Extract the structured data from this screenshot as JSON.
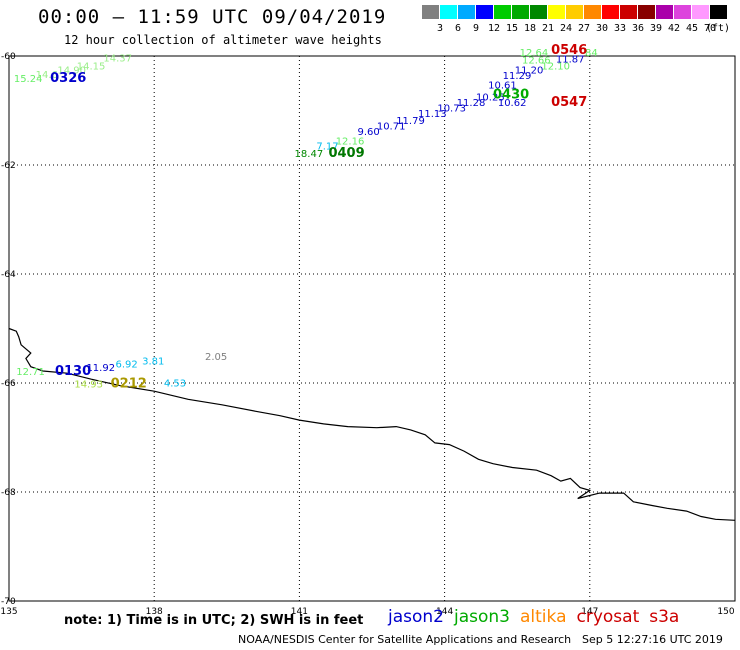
{
  "header": {
    "title": "00:00 — 11:59 UTC 09/04/2019",
    "subtitle": "12 hour collection of altimeter wave heights"
  },
  "color_scale": {
    "unit": "(ft)",
    "bins": [
      {
        "label": "3",
        "color": "#808080"
      },
      {
        "label": "6",
        "color": "#00ffff"
      },
      {
        "label": "9",
        "color": "#00aaff"
      },
      {
        "label": "12",
        "color": "#0000ff"
      },
      {
        "label": "15",
        "color": "#00cc00"
      },
      {
        "label": "18",
        "color": "#00aa00"
      },
      {
        "label": "21",
        "color": "#008800"
      },
      {
        "label": "24",
        "color": "#ffff00"
      },
      {
        "label": "27",
        "color": "#ffcc00"
      },
      {
        "label": "30",
        "color": "#ff8800"
      },
      {
        "label": "33",
        "color": "#ff0000"
      },
      {
        "label": "36",
        "color": "#cc0000"
      },
      {
        "label": "39",
        "color": "#880000"
      },
      {
        "label": "42",
        "color": "#aa00aa"
      },
      {
        "label": "45",
        "color": "#dd44dd"
      },
      {
        "label": "70",
        "color": "#ff99ff"
      },
      {
        "label": "",
        "color": "#000000"
      }
    ]
  },
  "axes": {
    "lon_min": 135,
    "lon_max": 150,
    "lat_top": -60,
    "lat_bottom": -70,
    "lon_ticks": [
      "135",
      "138",
      "141",
      "144",
      "147",
      "150"
    ],
    "lat_ticks": [
      "-60",
      "-62",
      "-64",
      "-66",
      "-68",
      "-70"
    ]
  },
  "coastline": [
    [
      135.0,
      -65.0
    ],
    [
      135.15,
      -65.05
    ],
    [
      135.2,
      -65.15
    ],
    [
      135.25,
      -65.3
    ],
    [
      135.45,
      -65.45
    ],
    [
      135.35,
      -65.55
    ],
    [
      135.45,
      -65.7
    ],
    [
      135.7,
      -65.78
    ],
    [
      136.2,
      -65.82
    ],
    [
      136.7,
      -65.93
    ],
    [
      137.3,
      -66.05
    ],
    [
      138.0,
      -66.15
    ],
    [
      138.7,
      -66.3
    ],
    [
      139.4,
      -66.4
    ],
    [
      140.1,
      -66.52
    ],
    [
      140.6,
      -66.6
    ],
    [
      141.0,
      -66.68
    ],
    [
      141.5,
      -66.75
    ],
    [
      142.0,
      -66.8
    ],
    [
      142.6,
      -66.82
    ],
    [
      143.0,
      -66.8
    ],
    [
      143.3,
      -66.86
    ],
    [
      143.6,
      -66.95
    ],
    [
      143.8,
      -67.1
    ],
    [
      144.1,
      -67.13
    ],
    [
      144.4,
      -67.25
    ],
    [
      144.7,
      -67.4
    ],
    [
      145.0,
      -67.48
    ],
    [
      145.4,
      -67.55
    ],
    [
      145.9,
      -67.6
    ],
    [
      146.2,
      -67.7
    ],
    [
      146.4,
      -67.8
    ],
    [
      146.6,
      -67.75
    ],
    [
      146.8,
      -67.92
    ],
    [
      147.0,
      -67.97
    ],
    [
      146.75,
      -68.12
    ],
    [
      147.2,
      -68.02
    ],
    [
      147.7,
      -68.02
    ],
    [
      147.9,
      -68.18
    ],
    [
      148.3,
      -68.25
    ],
    [
      148.6,
      -68.3
    ],
    [
      149.0,
      -68.35
    ],
    [
      149.3,
      -68.45
    ],
    [
      149.6,
      -68.5
    ],
    [
      150.0,
      -68.52
    ]
  ],
  "observations": [
    {
      "label": "15.24",
      "lon": 135.1,
      "lat": -60.48,
      "color": "#66ee66"
    },
    {
      "label": "14.6",
      "lon": 135.55,
      "lat": -60.4,
      "color": "#99ee88"
    },
    {
      "label": "14.90",
      "lon": 136.0,
      "lat": -60.32,
      "color": "#99ee88"
    },
    {
      "label": "14.15",
      "lon": 136.4,
      "lat": -60.25,
      "color": "#99ee88"
    },
    {
      "label": "14.37",
      "lon": 136.95,
      "lat": -60.1,
      "color": "#99ee88"
    },
    {
      "label": "0326",
      "lon": 135.85,
      "lat": -60.48,
      "color": "#0000cc",
      "time": true
    },
    {
      "label": "18.47",
      "lon": 140.9,
      "lat": -61.85,
      "color": "#008800"
    },
    {
      "label": "7.17",
      "lon": 141.35,
      "lat": -61.72,
      "color": "#00bbee"
    },
    {
      "label": "12.16",
      "lon": 141.75,
      "lat": -61.62,
      "color": "#66ee66"
    },
    {
      "label": "0409",
      "lon": 141.6,
      "lat": -61.85,
      "color": "#007700",
      "time": true
    },
    {
      "label": "9.60",
      "lon": 142.2,
      "lat": -61.45,
      "color": "#0000cc"
    },
    {
      "label": "10.71",
      "lon": 142.6,
      "lat": -61.35,
      "color": "#0000cc"
    },
    {
      "label": "11.79",
      "lon": 143.0,
      "lat": -61.25,
      "color": "#0000cc"
    },
    {
      "label": "11.13",
      "lon": 143.45,
      "lat": -61.12,
      "color": "#0000cc"
    },
    {
      "label": "10.73",
      "lon": 143.85,
      "lat": -61.02,
      "color": "#0000cc"
    },
    {
      "label": "11.28",
      "lon": 144.25,
      "lat": -60.92,
      "color": "#0000cc"
    },
    {
      "label": "10.25",
      "lon": 144.65,
      "lat": -60.82,
      "color": "#0000cc"
    },
    {
      "label": "10.61",
      "lon": 144.9,
      "lat": -60.6,
      "color": "#0000cc"
    },
    {
      "label": "11.29",
      "lon": 145.2,
      "lat": -60.42,
      "color": "#0000cc"
    },
    {
      "label": "11.20",
      "lon": 145.45,
      "lat": -60.32,
      "color": "#0000cc"
    },
    {
      "label": "0430",
      "lon": 145.0,
      "lat": -60.78,
      "color": "#00aa00",
      "time": true
    },
    {
      "label": "10.62",
      "lon": 145.1,
      "lat": -60.92,
      "color": "#0000cc"
    },
    {
      "label": "12.64",
      "lon": 145.55,
      "lat": -60.0,
      "color": "#66ee66"
    },
    {
      "label": "12.66",
      "lon": 145.6,
      "lat": -60.14,
      "color": "#66ee66"
    },
    {
      "label": "12.10",
      "lon": 146.0,
      "lat": -60.25,
      "color": "#66ee66"
    },
    {
      "label": "11.87",
      "lon": 146.3,
      "lat": -60.12,
      "color": "#0000cc"
    },
    {
      "label": "84",
      "lon": 146.9,
      "lat": -60.0,
      "color": "#66ee66"
    },
    {
      "label": "0546",
      "lon": 146.2,
      "lat": -59.96,
      "color": "#cc0000",
      "time": true
    },
    {
      "label": "0547",
      "lon": 146.2,
      "lat": -60.92,
      "color": "#cc0000",
      "time": true
    },
    {
      "label": "12.71",
      "lon": 135.15,
      "lat": -65.85,
      "color": "#66ee66"
    },
    {
      "label": "0130",
      "lon": 135.95,
      "lat": -65.85,
      "color": "#0000cc",
      "time": true
    },
    {
      "label": "11.92",
      "lon": 136.6,
      "lat": -65.78,
      "color": "#0000cc"
    },
    {
      "label": "6.92",
      "lon": 137.2,
      "lat": -65.72,
      "color": "#00bbee"
    },
    {
      "label": "3.81",
      "lon": 137.75,
      "lat": -65.66,
      "color": "#00bbee"
    },
    {
      "label": "2.05",
      "lon": 139.05,
      "lat": -65.58,
      "color": "#808080"
    },
    {
      "label": "14.93",
      "lon": 136.35,
      "lat": -66.08,
      "color": "#aadd44"
    },
    {
      "label": "0212",
      "lon": 137.1,
      "lat": -66.08,
      "color": "#aa9900",
      "time": true
    },
    {
      "label": "4.53",
      "lon": 138.2,
      "lat": -66.06,
      "color": "#00bbee"
    }
  ],
  "footer": {
    "note": "note: 1) Time is in UTC; 2) SWH is in feet",
    "satellites": [
      {
        "name": "jason2",
        "color": "#0000cc"
      },
      {
        "name": "jason3",
        "color": "#00aa00"
      },
      {
        "name": "altika",
        "color": "#ff8800"
      },
      {
        "name": "cryosat",
        "color": "#cc0000"
      },
      {
        "name": "s3a",
        "color": "#cc0000"
      }
    ],
    "credit": "NOAA/NESDIS Center for Satellite Applications and Research",
    "timestamp": "Sep  5 12:27:16 UTC 2019"
  }
}
